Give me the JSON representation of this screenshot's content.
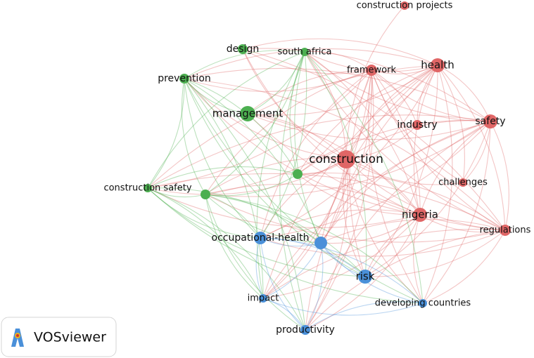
{
  "nodes": [
    {
      "label": "construction projects",
      "color": "#e06666"
    },
    {
      "label": "framework",
      "color": "#e06666"
    },
    {
      "label": "health",
      "color": "#e06666"
    },
    {
      "label": "industry",
      "color": "#e06666"
    },
    {
      "label": "safety",
      "color": "#e06666"
    },
    {
      "label": "construction",
      "color": "#e06666"
    },
    {
      "label": "challenges",
      "color": "#e06666"
    },
    {
      "label": "nigeria",
      "color": "#e06666"
    },
    {
      "label": "regulations",
      "color": "#e06666"
    },
    {
      "label": "design",
      "color": "#4caf50"
    },
    {
      "label": "south africa",
      "color": "#4caf50"
    },
    {
      "label": "prevention",
      "color": "#4caf50"
    },
    {
      "label": "management",
      "color": "#4caf50"
    },
    {
      "label": "construction safety",
      "color": "#4caf50"
    },
    {
      "label": "occupational-health",
      "color": "#4a90d9"
    },
    {
      "label": "risk",
      "color": "#4a90d9"
    },
    {
      "label": "impact",
      "color": "#4a90d9"
    },
    {
      "label": "developing countries",
      "color": "#4a90d9"
    },
    {
      "label": "productivity",
      "color": "#4a90d9"
    }
  ],
  "logo": {
    "text": "VOSviewer"
  }
}
